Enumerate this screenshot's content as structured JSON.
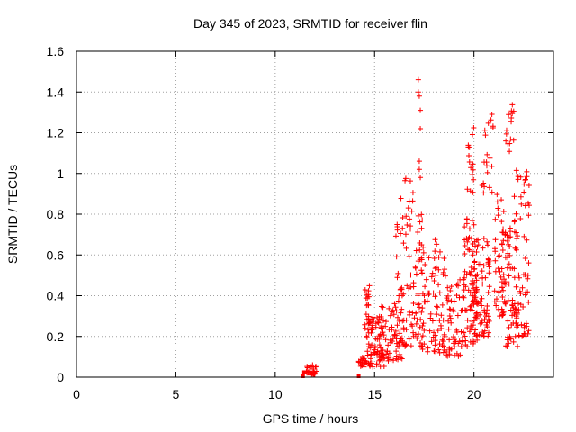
{
  "chart_data": {
    "type": "scatter",
    "title": "Day 345 of 2023, SRMTID for receiver flin",
    "xlabel": "GPS time / hours",
    "ylabel": "SRMTID / TECUs",
    "xlim": [
      0,
      24
    ],
    "ylim": [
      0,
      1.6
    ],
    "xticks": [
      0,
      5,
      10,
      15,
      20
    ],
    "yticks": [
      0,
      0.2,
      0.4,
      0.6,
      0.8,
      1,
      1.2,
      1.4,
      1.6
    ],
    "xtick_labels": [
      "0",
      "5",
      "10",
      "15",
      "20"
    ],
    "ytick_labels": [
      "0",
      "0.2",
      "0.4",
      "0.6",
      "0.8",
      "1",
      "1.2",
      "1.4",
      "1.6"
    ],
    "grid": true,
    "marker": "+",
    "marker_color": "#ff0000",
    "point_groups": [
      {
        "x": [
          11.4,
          11.45
        ],
        "y": [
          0.0,
          0.02
        ],
        "kind": "square"
      },
      {
        "x_range": [
          11.5,
          12.1
        ],
        "y_range": [
          0.01,
          0.06
        ],
        "count": 30
      },
      {
        "x": [
          14.2
        ],
        "y": [
          0.0
        ],
        "kind": "square"
      },
      {
        "x_range": [
          14.2,
          14.6
        ],
        "y_range": [
          0.05,
          0.1
        ],
        "count": 20
      },
      {
        "x_range": [
          14.5,
          14.8
        ],
        "y_range": [
          0.2,
          0.45
        ],
        "count": 20
      },
      {
        "x_range": [
          14.6,
          15.5
        ],
        "y_range": [
          0.05,
          0.3
        ],
        "count": 70
      },
      {
        "x_range": [
          15.3,
          16.5
        ],
        "y_range": [
          0.08,
          0.35
        ],
        "count": 70
      },
      {
        "x_range": [
          16.0,
          17.0
        ],
        "y_range": [
          0.15,
          0.9
        ],
        "count": 60
      },
      {
        "x_range": [
          16.4,
          17.0
        ],
        "y_range": [
          0.8,
          1.0
        ],
        "count": 6
      },
      {
        "x_range": [
          17.0,
          17.4
        ],
        "y_range": [
          0.15,
          0.8
        ],
        "count": 40
      },
      {
        "x": [
          17.2,
          17.2,
          17.25,
          17.3,
          17.3,
          17.25,
          17.25,
          17.3
        ],
        "y": [
          1.46,
          1.4,
          1.38,
          1.31,
          1.22,
          1.06,
          1.02,
          0.98
        ]
      },
      {
        "x_range": [
          17.4,
          18.6
        ],
        "y_range": [
          0.12,
          0.7
        ],
        "count": 80
      },
      {
        "x_range": [
          18.6,
          19.5
        ],
        "y_range": [
          0.1,
          0.5
        ],
        "count": 60
      },
      {
        "x_range": [
          19.5,
          20.2
        ],
        "y_range": [
          0.15,
          0.8
        ],
        "count": 80
      },
      {
        "x_range": [
          19.6,
          20.0
        ],
        "y_range": [
          0.9,
          1.25
        ],
        "count": 15
      },
      {
        "x_range": [
          20.0,
          20.8
        ],
        "y_range": [
          0.2,
          0.7
        ],
        "count": 80
      },
      {
        "x_range": [
          20.4,
          21.0
        ],
        "y_range": [
          0.9,
          1.3
        ],
        "count": 20
      },
      {
        "x_range": [
          21.0,
          21.6
        ],
        "y_range": [
          0.3,
          0.9
        ],
        "count": 60
      },
      {
        "x_range": [
          21.6,
          22.0
        ],
        "y_range": [
          1.1,
          1.37
        ],
        "count": 15
      },
      {
        "x_range": [
          21.6,
          22.2
        ],
        "y_range": [
          0.15,
          0.8
        ],
        "count": 50
      },
      {
        "x_range": [
          22.0,
          22.8
        ],
        "y_range": [
          0.2,
          1.02
        ],
        "count": 70
      }
    ]
  }
}
